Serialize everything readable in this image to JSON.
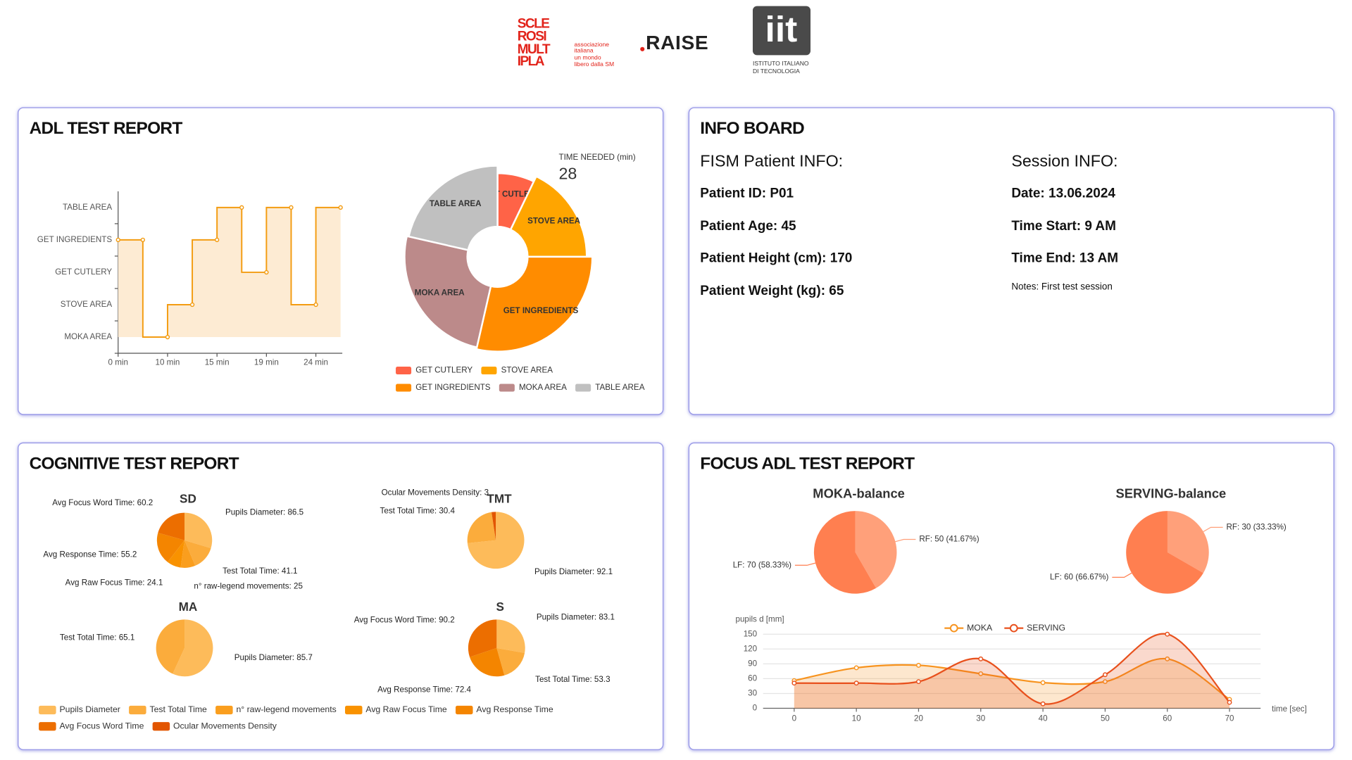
{
  "header": {
    "sm_logo": [
      "SCLE",
      "ROSI",
      "MULT",
      "IPLA"
    ],
    "sm_tagline": [
      "associazione",
      "italiana",
      "un mondo",
      "libero dalla SM"
    ],
    "raise_logo": "RAISE",
    "iit_logo": "iit",
    "iit_name": [
      "ISTITUTO ITALIANO",
      "DI TECNOLOGIA"
    ]
  },
  "panels": {
    "adl": "ADL TEST REPORT",
    "info": "INFO BOARD",
    "cognitive": "COGNITIVE TEST REPORT",
    "focus": "FOCUS ADL TEST REPORT"
  },
  "info_board": {
    "patient_heading": "FISM Patient INFO:",
    "patient": [
      "Patient ID: P01",
      "Patient Age: 45",
      "Patient Height (cm): 170",
      "Patient Weight (kg): 65"
    ],
    "session_heading": "Session INFO:",
    "session": [
      "Date: 13.06.2024",
      "Time Start: 9 AM",
      "Time End: 13 AM"
    ],
    "notes": "Notes: First test session"
  },
  "cognitive_legend": {
    "names": [
      "Pupils Diameter",
      "Test Total Time",
      "n° raw-legend movements",
      "Avg Raw Focus Time",
      "Avg Response Time",
      "Avg Focus Word Time",
      "Ocular Movements Density"
    ],
    "colors": [
      "#fdbb5a",
      "#fbac3c",
      "#fa9e1e",
      "#f99200",
      "#f48500",
      "#ec6e00",
      "#e25500"
    ]
  },
  "chart_data": [
    {
      "type": "line",
      "step": "end",
      "categories": [
        "0 min",
        null,
        "10 min",
        null,
        "15 min",
        null,
        "19 min",
        null,
        "24 min",
        null
      ],
      "y_categories": [
        "MOKA AREA",
        "STOVE AREA",
        "GET CUTLERY",
        "GET INGREDIENTS",
        "TABLE AREA"
      ],
      "values": [
        "GET INGREDIENTS",
        "GET INGREDIENTS",
        "MOKA AREA",
        "STOVE AREA",
        "GET INGREDIENTS",
        "TABLE AREA",
        "GET CUTLERY",
        "TABLE AREA",
        "STOVE AREA",
        "TABLE AREA"
      ],
      "color": "#f39c12",
      "area_color": "#fdebd3"
    },
    {
      "type": "pie",
      "rose": true,
      "annotation": "TIME NEEDED (min)",
      "total": 28,
      "categories": [
        "GET CUTLERY",
        "STOVE AREA",
        "GET INGREDIENTS",
        "MOKA AREA",
        "TABLE AREA"
      ],
      "values": [
        2,
        5,
        8,
        7,
        6
      ],
      "colors": [
        "#ff6347",
        "#ffa500",
        "#ff8c00",
        "#bc8a8a",
        "#c0c0c0"
      ],
      "legend": "bottom"
    },
    {
      "type": "pie",
      "title": "SD",
      "categories": [
        "Pupils Diameter",
        "Test Total Time",
        "n° raw-legend movements",
        "Avg Raw Focus Time",
        "Avg Response Time",
        "Avg Focus Word Time"
      ],
      "values": [
        86.5,
        41.1,
        25,
        24.1,
        55.2,
        60.2
      ],
      "value_labels": [
        "Pupils Diameter: 86.5",
        "Test Total Time: 41.1",
        "n° raw-legend movements: 25",
        "Avg Raw Focus Time: 24.1",
        "Avg Response Time: 55.2",
        "Avg Focus Word Time: 60.2"
      ],
      "colors": [
        "#fdbb5a",
        "#fbac3c",
        "#fa9e1e",
        "#f99200",
        "#f48500",
        "#ec6e00"
      ]
    },
    {
      "type": "pie",
      "title": "TMT",
      "categories": [
        "Pupils Diameter",
        "Test Total Time",
        "Ocular Movements Density"
      ],
      "values": [
        92.1,
        30.4,
        3
      ],
      "value_labels": [
        "Pupils Diameter: 92.1",
        "Test Total Time: 30.4",
        "Ocular Movements Density: 3"
      ],
      "colors": [
        "#fdbb5a",
        "#fbac3c",
        "#e25500"
      ]
    },
    {
      "type": "pie",
      "title": "MA",
      "categories": [
        "Pupils Diameter",
        "Test Total Time"
      ],
      "values": [
        85.7,
        65.1
      ],
      "value_labels": [
        "Pupils Diameter: 85.7",
        "Test Total Time: 65.1"
      ],
      "colors": [
        "#fdbb5a",
        "#fbac3c"
      ]
    },
    {
      "type": "pie",
      "title": "S",
      "categories": [
        "Pupils Diameter",
        "Test Total Time",
        "Avg Response Time",
        "Avg Focus Word Time"
      ],
      "values": [
        83.1,
        53.3,
        72.4,
        90.2
      ],
      "value_labels": [
        "Pupils Diameter: 83.1",
        "Test Total Time: 53.3",
        "Avg Response Time: 72.4",
        "Avg Focus Word Time: 90.2"
      ],
      "colors": [
        "#fdbb5a",
        "#fbac3c",
        "#f48500",
        "#ec6e00"
      ]
    },
    {
      "type": "pie",
      "title": "MOKA-balance",
      "categories": [
        "RF",
        "LF"
      ],
      "values": [
        50,
        70
      ],
      "value_labels": [
        "RF: 50 (41.67%)",
        "LF: 70 (58.33%)"
      ],
      "colors": [
        "#ffa07a",
        "#ff7f50"
      ]
    },
    {
      "type": "pie",
      "title": "SERVING-balance",
      "categories": [
        "RF",
        "LF"
      ],
      "values": [
        30,
        60
      ],
      "value_labels": [
        "RF: 30 (33.33%)",
        "LF: 60 (66.67%)"
      ],
      "colors": [
        "#ffa07a",
        "#ff7f50"
      ]
    },
    {
      "type": "line",
      "smooth": true,
      "area": true,
      "y_label": "pupils d [mm]",
      "x_label": "time [sec]",
      "x": [
        0,
        10,
        20,
        30,
        40,
        50,
        60,
        70
      ],
      "xlim": [
        -5,
        75
      ],
      "xticks": [
        0,
        10,
        20,
        30,
        40,
        50,
        60,
        70
      ],
      "ylim": [
        0,
        150
      ],
      "yticks": [
        0,
        30,
        60,
        90,
        120,
        150
      ],
      "grid": true,
      "legend": "top",
      "series": [
        {
          "name": "MOKA",
          "color": "#f7931e",
          "values": [
            56,
            82,
            87,
            70,
            52,
            54,
            100,
            18
          ]
        },
        {
          "name": "SERVING",
          "color": "#e8501c",
          "values": [
            51,
            51,
            54,
            100,
            9,
            68,
            150,
            12
          ]
        }
      ]
    }
  ]
}
